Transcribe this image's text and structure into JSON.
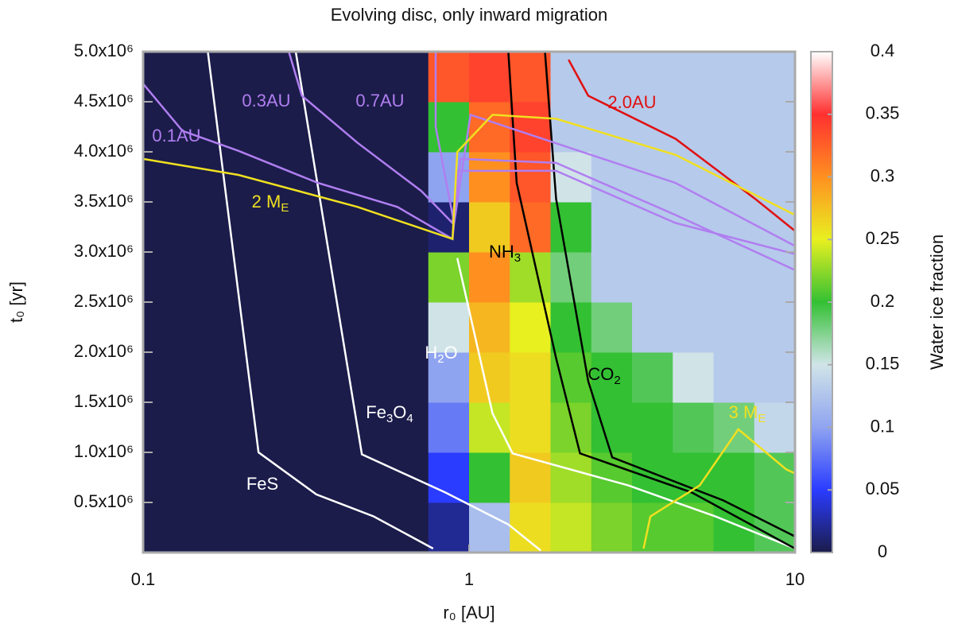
{
  "chart_data": {
    "type": "heatmap",
    "title": "Evolving disc, only inward migration",
    "x_label": "r₀ [AU]",
    "y_label": "t₀ [yr]",
    "colorbar_label": "Water ice fraction",
    "xlog": true,
    "xlim": [
      0.1,
      10
    ],
    "xticks": [
      0.1,
      1,
      10
    ],
    "ylim": [
      0,
      5000000
    ],
    "yticks": [
      {
        "value": 500000,
        "label": "0.5x10⁶"
      },
      {
        "value": 1000000,
        "label": "1.0x10⁶"
      },
      {
        "value": 1500000,
        "label": "1.5x10⁶"
      },
      {
        "value": 2000000,
        "label": "2.0x10⁶"
      },
      {
        "value": 2500000,
        "label": "2.5x10⁶"
      },
      {
        "value": 3000000,
        "label": "3.0x10⁶"
      },
      {
        "value": 3500000,
        "label": "3.5x10⁶"
      },
      {
        "value": 4000000,
        "label": "4.0x10⁶"
      },
      {
        "value": 4500000,
        "label": "4.5x10⁶"
      },
      {
        "value": 5000000,
        "label": "5.0x10⁶"
      }
    ],
    "clim": [
      0,
      0.4
    ],
    "cticks": [
      0,
      0.05,
      0.1,
      0.15,
      0.2,
      0.25,
      0.3,
      0.35,
      0.4
    ],
    "colorscale": [
      [
        0,
        "#1b1c4a"
      ],
      [
        0.05,
        "#2a3cff"
      ],
      [
        0.1,
        "#8fa4f0"
      ],
      [
        0.15,
        "#d0e4e8"
      ],
      [
        0.2,
        "#33c033"
      ],
      [
        0.25,
        "#e8f020"
      ],
      [
        0.3,
        "#ff9020"
      ],
      [
        0.35,
        "#ff3030"
      ],
      [
        0.4,
        "#ffffff"
      ]
    ],
    "x_edges": [
      0.1,
      0.1334,
      0.1778,
      0.2371,
      0.3162,
      0.4217,
      0.5623,
      0.7499,
      1,
      1.3335,
      1.7783,
      2.3714,
      3.1623,
      4.217,
      5.6234,
      7.4989,
      10
    ],
    "y_edges": [
      0,
      500000,
      1000000,
      1500000,
      2000000,
      2500000,
      3000000,
      3500000,
      4000000,
      4500000,
      5000000
    ],
    "z": [
      [
        0,
        0,
        0,
        0,
        0,
        0,
        0,
        0.02,
        0.12,
        0.26,
        0.24,
        0.22,
        0.21,
        0.21,
        0.2,
        0.19
      ],
      [
        0,
        0,
        0,
        0,
        0,
        0,
        0,
        0.05,
        0.2,
        0.27,
        0.23,
        0.21,
        0.2,
        0.2,
        0.2,
        0.19
      ],
      [
        0,
        0,
        0,
        0,
        0,
        0,
        0,
        0.08,
        0.24,
        0.26,
        0.22,
        0.2,
        0.2,
        0.19,
        0.18,
        0.14
      ],
      [
        0,
        0,
        0,
        0,
        0,
        0,
        0,
        0.1,
        0.27,
        0.26,
        0.21,
        0.2,
        0.19,
        0.15,
        0.13,
        0.13
      ],
      [
        0,
        0,
        0,
        0,
        0,
        0,
        0,
        0.15,
        0.28,
        0.25,
        0.2,
        0.18,
        0.13,
        0.13,
        0.13,
        0.13
      ],
      [
        0,
        0,
        0,
        0,
        0,
        0,
        0,
        0.22,
        0.3,
        0.23,
        0.18,
        0.13,
        0.13,
        0.13,
        0.13,
        0.13
      ],
      [
        0,
        0,
        0,
        0,
        0,
        0,
        0,
        0.01,
        0.27,
        0.32,
        0.2,
        0.13,
        0.13,
        0.13,
        0.13,
        0.13
      ],
      [
        0,
        0,
        0,
        0,
        0,
        0,
        0,
        0.1,
        0.3,
        0.33,
        0.15,
        0.13,
        0.13,
        0.13,
        0.13,
        0.13
      ],
      [
        0,
        0,
        0,
        0,
        0,
        0,
        0,
        0.2,
        0.32,
        0.34,
        0.13,
        0.13,
        0.13,
        0.13,
        0.13,
        0.13
      ],
      [
        0,
        0,
        0,
        0,
        0,
        0,
        0,
        0.33,
        0.34,
        0.33,
        0.13,
        0.13,
        0.13,
        0.13,
        0.13,
        0.13
      ]
    ],
    "contours": [
      {
        "label": [
          "FeS"
        ],
        "color": "#ffffff",
        "x": [
          0.158,
          0.226,
          0.34,
          0.51,
          0.776
        ],
        "y": [
          5000000,
          1000000,
          580000,
          360000,
          40000
        ]
      },
      {
        "label": [
          "Fe",
          "3",
          "O",
          "4"
        ],
        "color": "#ffffff",
        "x": [
          0.294,
          0.469,
          0.845,
          1.32,
          1.66
        ],
        "y": [
          5000000,
          980000,
          600000,
          280000,
          20000
        ]
      },
      {
        "label": [
          "H",
          "2",
          "O"
        ],
        "color": "#ffffff",
        "x": [
          0.92,
          1.18,
          1.36,
          3.08,
          5.7,
          10
        ],
        "y": [
          2940000,
          1390000,
          990000,
          670000,
          360000,
          40000
        ]
      },
      {
        "label": [
          "NH",
          "3"
        ],
        "color": "#000000",
        "x": [
          1.32,
          1.4,
          1.85,
          2.19,
          4.82,
          10
        ],
        "y": [
          5000000,
          3690000,
          1940000,
          990000,
          600000,
          40000
        ]
      },
      {
        "label": [
          "CO",
          "2"
        ],
        "color": "#000000",
        "x": [
          1.71,
          1.85,
          2.32,
          2.75,
          6.03,
          10
        ],
        "y": [
          5000000,
          3530000,
          1710000,
          950000,
          520000,
          160000
        ]
      },
      {
        "label": [
          "2.0AU"
        ],
        "color": "#e01010",
        "x": [
          2.02,
          2.32,
          4.3,
          7.55,
          10
        ],
        "y": [
          4920000,
          4560000,
          4130000,
          3530000,
          3210000
        ]
      },
      {
        "label": [
          "0.1AU"
        ],
        "color": "#b07ef0",
        "x": [
          0.1,
          0.132,
          0.196,
          0.344,
          0.603,
          0.89,
          0.94,
          1.85,
          4.3,
          10
        ],
        "y": [
          4680000,
          4210000,
          4010000,
          3690000,
          3450000,
          3130000,
          3930000,
          3890000,
          3370000,
          2820000
        ]
      },
      {
        "label": [
          "0.3AU"
        ],
        "color": "#b07ef0",
        "x": [
          0.28,
          0.307,
          0.455,
          0.713,
          0.89,
          0.92,
          1.85,
          4.3,
          10
        ],
        "y": [
          5000000,
          4560000,
          4090000,
          3610000,
          3290000,
          3810000,
          3810000,
          3290000,
          2980000
        ]
      },
      {
        "label": [
          "0.7AU"
        ],
        "color": "#b07ef0",
        "x": [
          0.79,
          0.79,
          0.9,
          1.01,
          4.3,
          10
        ],
        "y": [
          5000000,
          4250000,
          3290000,
          4370000,
          3690000,
          3060000
        ]
      },
      {
        "label": [
          "2 M",
          "E"
        ],
        "color": "#f0e020",
        "x": [
          0.1,
          0.196,
          0.455,
          0.89,
          0.92,
          1.18,
          1.85,
          4.3,
          10
        ],
        "y": [
          3930000,
          3770000,
          3450000,
          3130000,
          4000000,
          4370000,
          4330000,
          3970000,
          3370000
        ]
      },
      {
        "label": [
          "3 M",
          "E"
        ],
        "color": "#f0e020",
        "x": [
          3.43,
          3.6,
          5.1,
          6.7,
          9.4,
          10
        ],
        "y": [
          40000,
          360000,
          670000,
          1230000,
          830000,
          790000
        ]
      }
    ]
  }
}
